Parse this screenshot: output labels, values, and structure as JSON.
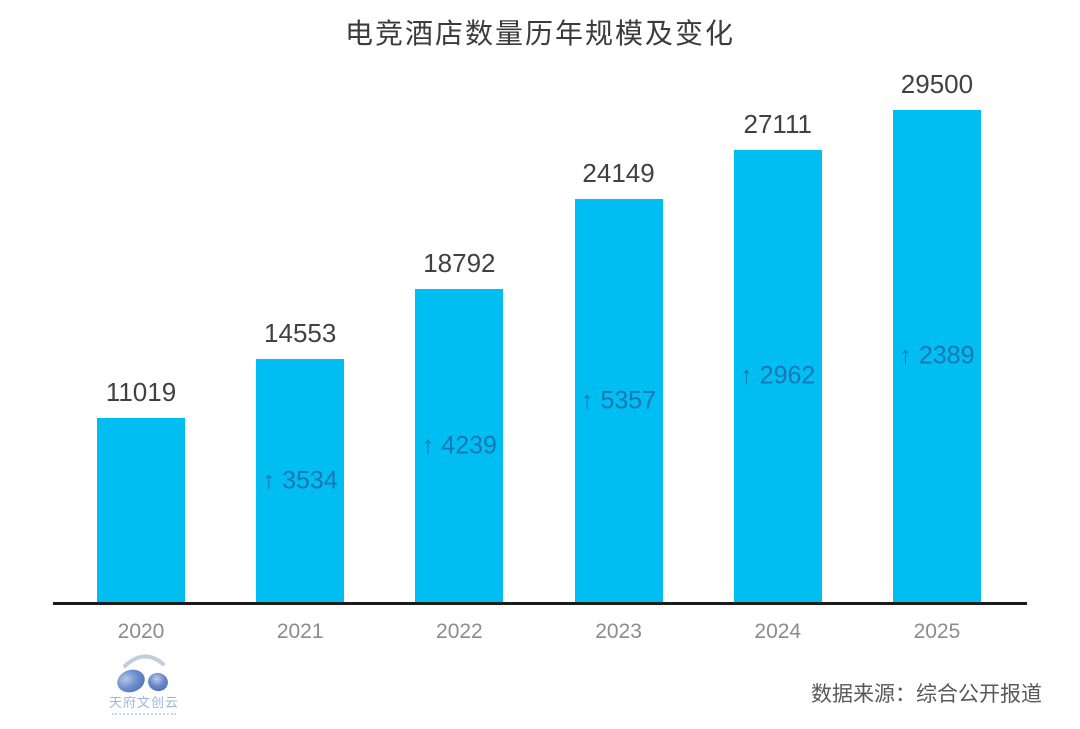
{
  "title": "电竞酒店数量历年规模及变化",
  "chart_data": {
    "type": "bar",
    "title": "电竞酒店数量历年规模及变化",
    "categories": [
      "2020",
      "2021",
      "2022",
      "2023",
      "2024",
      "2025"
    ],
    "values": [
      11019,
      14553,
      18792,
      24149,
      27111,
      29500
    ],
    "value_labels": [
      "11019",
      "14553",
      "18792",
      "24149",
      "27111",
      "29500"
    ],
    "deltas": [
      null,
      3534,
      4239,
      5357,
      2962,
      2389
    ],
    "delta_labels": [
      "",
      "↑ 3534",
      "↑ 4239",
      "↑ 5357",
      "↑ 2962",
      "↑ 2389"
    ],
    "xlabel": "",
    "ylabel": "",
    "ylim": [
      0,
      29500
    ],
    "grid": false,
    "legend": false,
    "value_label_position": "above-bar",
    "delta_label_position": "inside-bar-center",
    "bar_color": "#00bdf2",
    "delta_text_color": "#1b76b4",
    "value_text_color": "#414141",
    "tick_text_color": "#8c8c8c",
    "axis_color": "#1a1a1a"
  },
  "footer": {
    "logo_text": "天府文创云",
    "source_label": "数据来源：综合公开报道"
  },
  "icons": {
    "delta_arrow": "up-arrow",
    "logo": "headphones-icon"
  }
}
